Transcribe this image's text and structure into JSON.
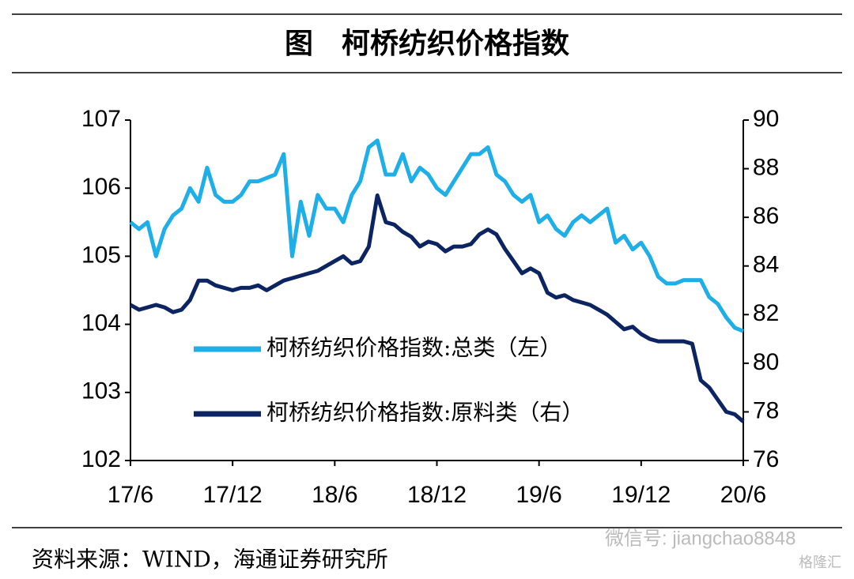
{
  "chart_data": {
    "type": "line",
    "title": "图　柯桥纺织价格指数",
    "source": "资料来源：WIND，海通证券研究所",
    "watermark": "微信号: jiangchao8848",
    "watermark2": "格隆汇",
    "categories": [
      "17/6",
      null,
      null,
      null,
      null,
      null,
      null,
      null,
      null,
      null,
      null,
      null,
      "17/12",
      null,
      null,
      null,
      null,
      null,
      null,
      null,
      null,
      null,
      null,
      null,
      "18/6",
      null,
      null,
      null,
      null,
      null,
      null,
      null,
      null,
      null,
      null,
      null,
      "18/12",
      null,
      null,
      null,
      null,
      null,
      null,
      null,
      null,
      null,
      null,
      null,
      "19/6",
      null,
      null,
      null,
      null,
      null,
      null,
      null,
      null,
      null,
      null,
      null,
      "19/12",
      null,
      null,
      null,
      null,
      null,
      null,
      null,
      null,
      null,
      null,
      null,
      "20/6"
    ],
    "series": [
      {
        "name": "柯桥纺织价格指数:总类（左）",
        "color": "#1eaee8",
        "axis": "y",
        "values": [
          105.5,
          105.4,
          105.5,
          105.0,
          105.4,
          105.6,
          105.7,
          106.0,
          105.8,
          106.3,
          105.9,
          105.8,
          105.8,
          105.9,
          106.1,
          106.1,
          106.15,
          106.2,
          106.5,
          105.0,
          105.8,
          105.3,
          105.9,
          105.7,
          105.7,
          105.5,
          105.9,
          106.1,
          106.6,
          106.7,
          106.2,
          106.2,
          106.5,
          106.1,
          106.3,
          106.2,
          106.0,
          105.9,
          106.1,
          106.3,
          106.5,
          106.5,
          106.6,
          106.2,
          106.1,
          105.9,
          105.8,
          105.9,
          105.5,
          105.6,
          105.4,
          105.3,
          105.5,
          105.6,
          105.5,
          105.6,
          105.7,
          105.2,
          105.3,
          105.1,
          105.2,
          105.0,
          104.7,
          104.6,
          104.6,
          104.65,
          104.65,
          104.65,
          104.4,
          104.3,
          104.1,
          103.95,
          103.9
        ]
      },
      {
        "name": "柯桥纺织价格指数:原料类（右）",
        "color": "#0c2461",
        "axis": "y2",
        "values": [
          82.4,
          82.2,
          82.3,
          82.4,
          82.3,
          82.1,
          82.2,
          82.6,
          83.4,
          83.4,
          83.2,
          83.1,
          83.0,
          83.1,
          83.1,
          83.2,
          83.0,
          83.2,
          83.4,
          83.5,
          83.6,
          83.7,
          83.8,
          84.0,
          84.2,
          84.4,
          84.1,
          84.2,
          84.8,
          86.9,
          85.8,
          85.7,
          85.4,
          85.2,
          84.8,
          85.0,
          84.9,
          84.6,
          84.8,
          84.8,
          84.9,
          85.3,
          85.5,
          85.3,
          84.7,
          84.2,
          83.7,
          83.9,
          83.7,
          82.9,
          82.7,
          82.8,
          82.6,
          82.5,
          82.4,
          82.2,
          82.0,
          81.7,
          81.4,
          81.5,
          81.2,
          81.0,
          80.9,
          80.9,
          80.9,
          80.9,
          80.8,
          79.3,
          79.0,
          78.5,
          78.0,
          77.9,
          77.6
        ]
      }
    ],
    "ylim": [
      102,
      107
    ],
    "yticks": [
      102,
      103,
      104,
      105,
      106,
      107
    ],
    "y2lim": [
      76,
      90
    ],
    "y2ticks": [
      76,
      78,
      80,
      82,
      84,
      86,
      88,
      90
    ],
    "grid": false
  }
}
